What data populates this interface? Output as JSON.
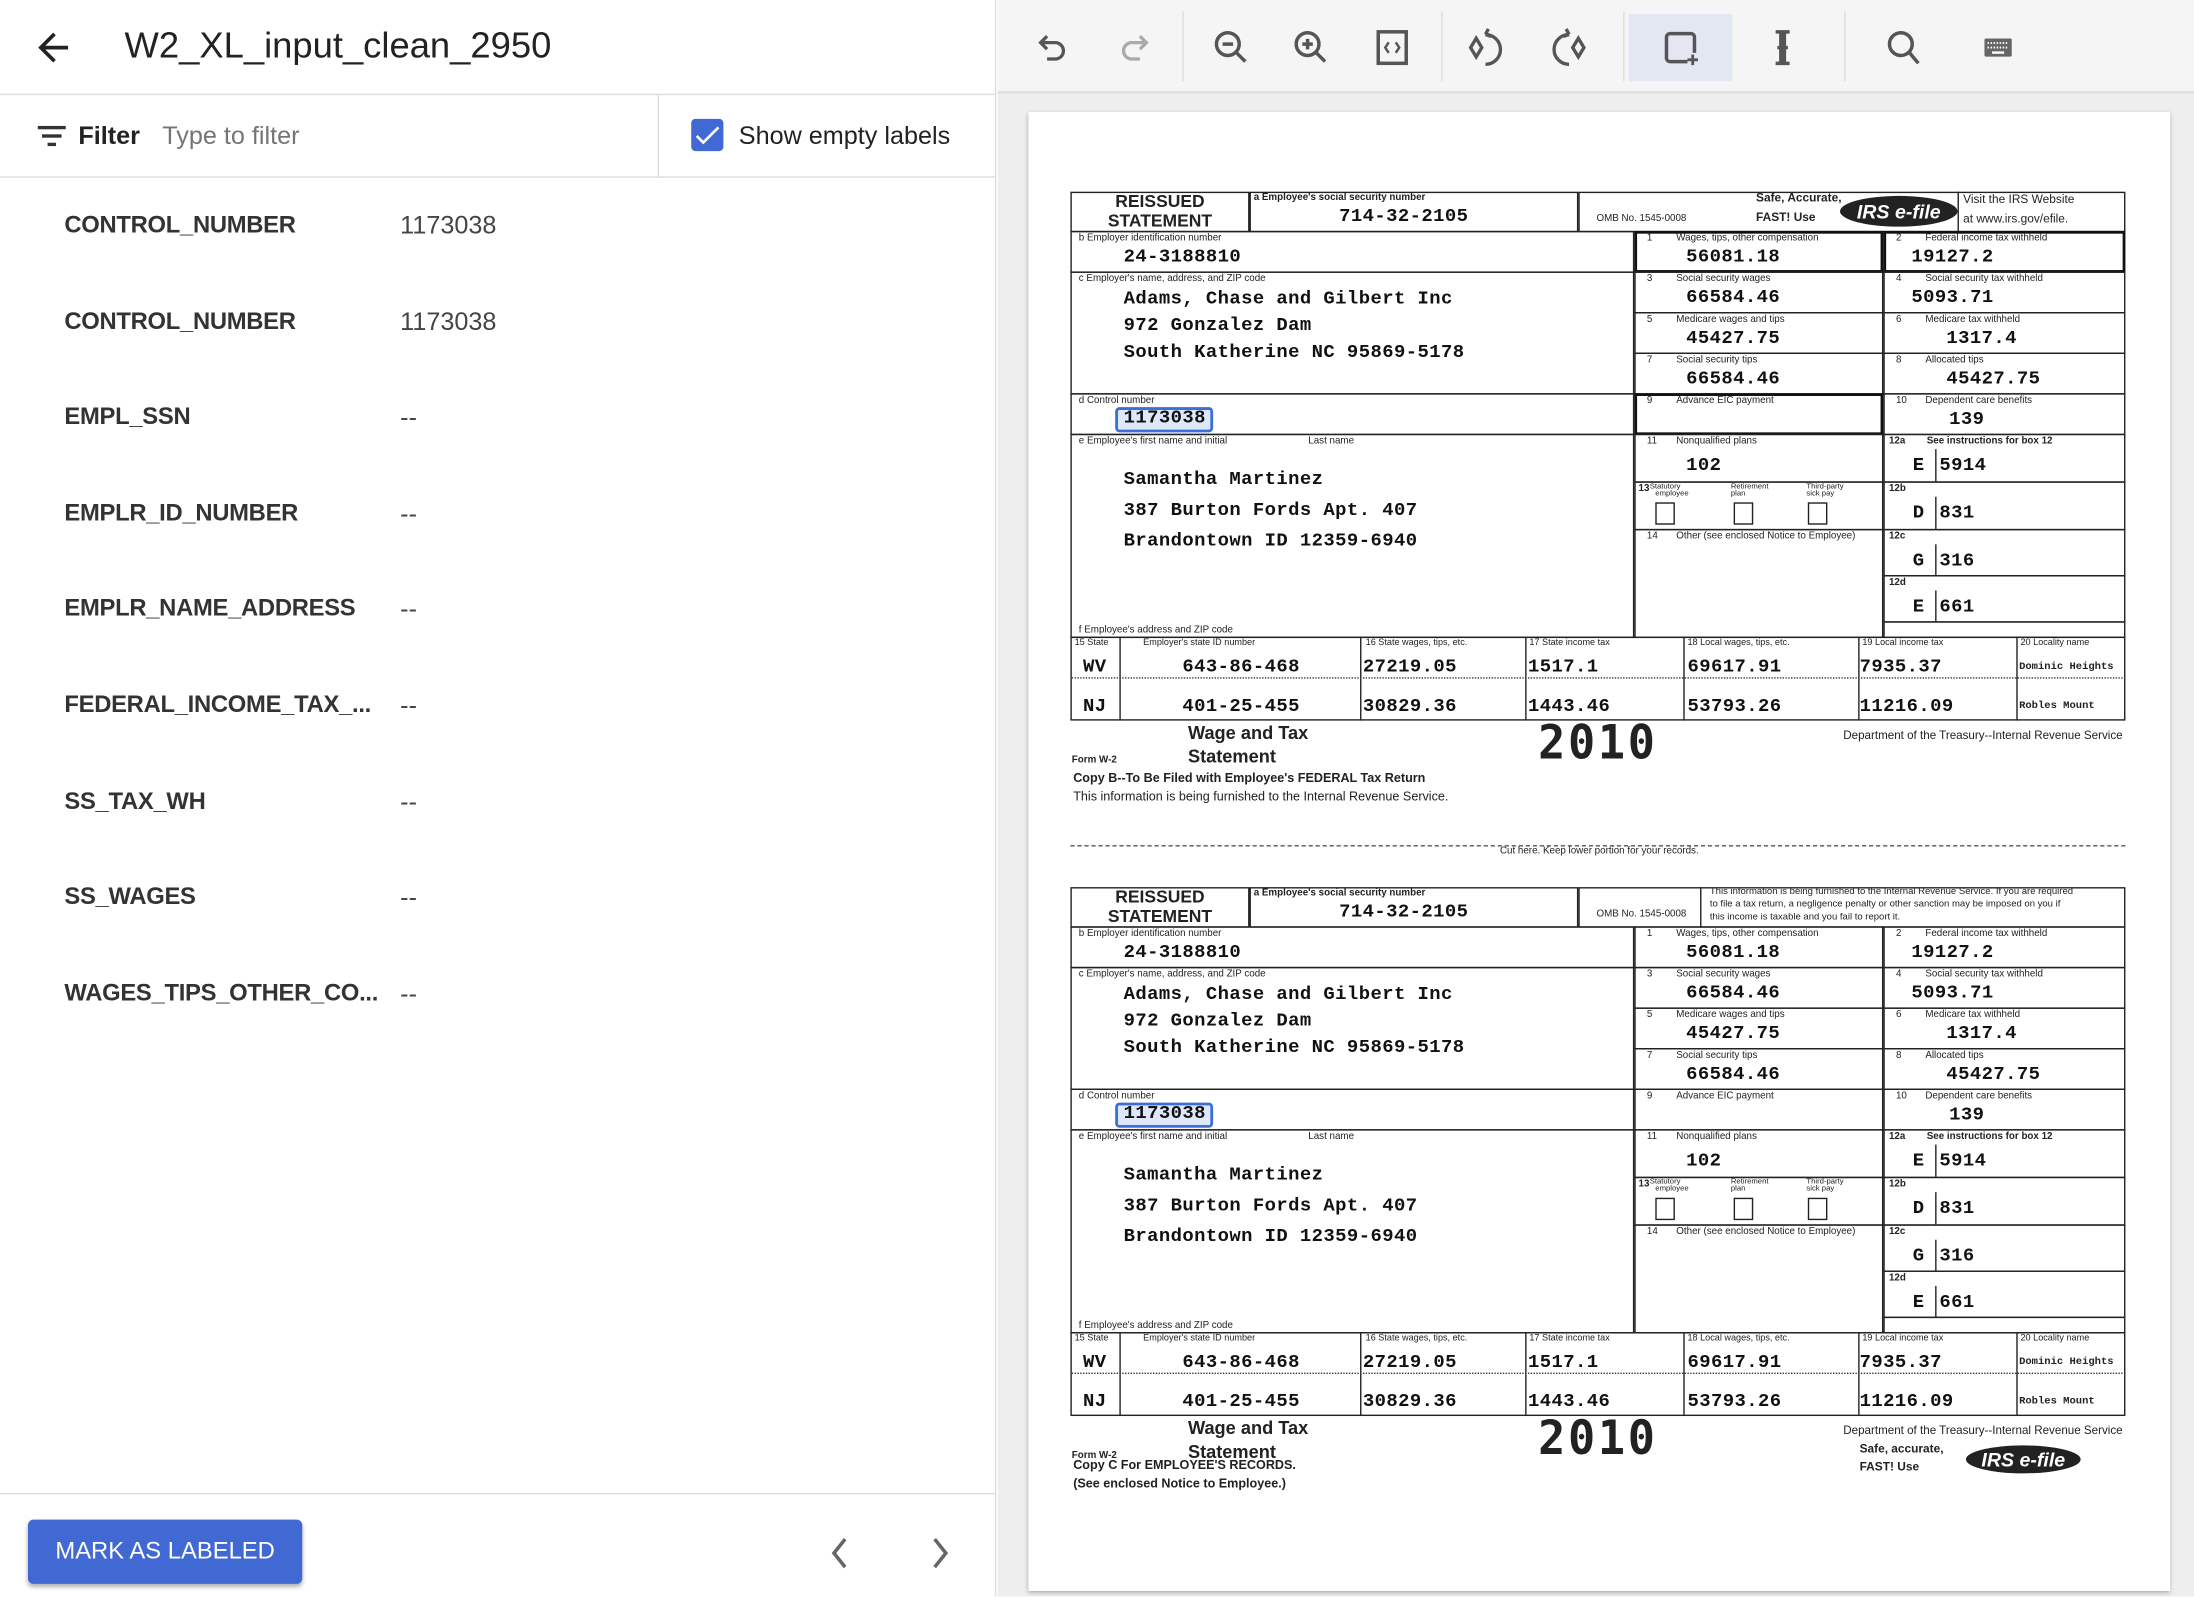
{
  "header": {
    "title": "W2_XL_input_clean_2950",
    "back_icon": "arrow-left-icon"
  },
  "filter": {
    "label": "Filter",
    "placeholder": "Type to filter",
    "show_empty_label": "Show empty labels",
    "show_empty_checked": true
  },
  "labels": [
    {
      "name": "CONTROL_NUMBER",
      "value": "1173038"
    },
    {
      "name": "CONTROL_NUMBER",
      "value": "1173038"
    },
    {
      "name": "EMPL_SSN",
      "value": "--"
    },
    {
      "name": "EMPLR_ID_NUMBER",
      "value": "--"
    },
    {
      "name": "EMPLR_NAME_ADDRESS",
      "value": "--"
    },
    {
      "name": "FEDERAL_INCOME_TAX_...",
      "value": "--"
    },
    {
      "name": "SS_TAX_WH",
      "value": "--"
    },
    {
      "name": "SS_WAGES",
      "value": "--"
    },
    {
      "name": "WAGES_TIPS_OTHER_CO...",
      "value": "--"
    }
  ],
  "footer": {
    "mark_button": "MARK AS LABELED",
    "accent": "#4169d4"
  },
  "toolbar": [
    "undo-icon",
    "redo-icon",
    "zoom-out-icon",
    "zoom-in-icon",
    "fit-page-icon",
    "rotate-left-icon",
    "rotate-right-icon",
    "add-bounding-box-icon",
    "text-select-icon",
    "search-icon",
    "keyboard-icon"
  ],
  "w2": {
    "reissued": "REISSUED",
    "statement": "STATEMENT",
    "a_label": "a  Employee's social security number",
    "ssn": "714-32-2105",
    "omb": "OMB No. 1545-0008",
    "b_label": "b  Employer identification number",
    "ein": "24-3188810",
    "c_label": "c  Employer's name, address, and ZIP code",
    "employer_lines": [
      "Adams, Chase and Gilbert Inc",
      "972 Gonzalez Dam",
      "South Katherine   NC   95869-5178"
    ],
    "d_label": "d  Control number",
    "control_number": "1173038",
    "e_label": "e  Employee's first name and initial",
    "last_name_label": "Last name",
    "employee_lines": [
      "Samantha   Martinez",
      "387 Burton Fords Apt. 407",
      "Brandontown   ID    12359-6940"
    ],
    "f_label": "f  Employee's address and ZIP code",
    "boxes": {
      "b1": {
        "num": "1",
        "label": "Wages, tips, other compensation",
        "value": "56081.18"
      },
      "b2": {
        "num": "2",
        "label": "Federal income tax withheld",
        "value": "19127.2"
      },
      "b3": {
        "num": "3",
        "label": "Social security wages",
        "value": "66584.46"
      },
      "b4": {
        "num": "4",
        "label": "Social security tax withheld",
        "value": "5093.71"
      },
      "b5": {
        "num": "5",
        "label": "Medicare wages and tips",
        "value": "45427.75"
      },
      "b6": {
        "num": "6",
        "label": "Medicare tax withheld",
        "value": "1317.4"
      },
      "b7": {
        "num": "7",
        "label": "Social security tips",
        "value": "66584.46"
      },
      "b8": {
        "num": "8",
        "label": "Allocated tips",
        "value": "45427.75"
      },
      "b9": {
        "num": "9",
        "label": "Advance EIC payment",
        "value": ""
      },
      "b10": {
        "num": "10",
        "label": "Dependent care benefits",
        "value": "139"
      },
      "b11": {
        "num": "11",
        "label": "Nonqualified plans",
        "value": "102"
      },
      "b14": {
        "num": "14",
        "label": "Other (see enclosed Notice to Employee)",
        "value": ""
      }
    },
    "box13": {
      "num": "13",
      "statutory": "Statutory",
      "employee": "employee",
      "retirement": "Retirement",
      "plan": "plan",
      "thirdparty": "Third-party",
      "sickpay": "sick pay"
    },
    "box12": [
      {
        "label": "12a",
        "extra": "See instructions for box 12",
        "code": "E",
        "value": "5914"
      },
      {
        "label": "12b",
        "extra": "",
        "code": "D",
        "value": "831"
      },
      {
        "label": "12c",
        "extra": "",
        "code": "G",
        "value": "316"
      },
      {
        "label": "12d",
        "extra": "",
        "code": "E",
        "value": "661"
      }
    ],
    "state_headers": [
      "15  State",
      "Employer's state ID number",
      "16  State wages, tips, etc.",
      "17  State income tax",
      "18  Local wages, tips, etc.",
      "19  Local income tax",
      "20  Locality name"
    ],
    "state_rows": [
      [
        "WV",
        "643-86-468",
        "27219.05",
        "1517.1",
        "69617.91",
        "7935.37",
        "Dominic Heights"
      ],
      [
        "NJ",
        "401-25-455",
        "30829.36",
        "1443.46",
        "53793.26",
        "11216.09",
        "Robles Mount"
      ]
    ],
    "wage_and_tax": "Wage and Tax",
    "statement_title": "Statement",
    "form_w2": "Form  W-2",
    "year": "2010",
    "dept": "Department of the Treasury--Internal Revenue Service",
    "efile_logo": "IRS e-file"
  },
  "copies": [
    {
      "safe": "Safe, Accurate,",
      "fast": "FAST!  Use",
      "visit1": "Visit the IRS Website",
      "visit2": "at www.irs.gov/efile.",
      "copy_line1": "Copy B--To Be Filed with Employee's FEDERAL Tax Return",
      "copy_line2": "This information is being furnished to the Internal Revenue Service."
    },
    {
      "notice": [
        "This information is being furnished to the Internal Revenue Service.  If you are required",
        "to file a tax return, a negligence penalty or other sanction may be imposed on you if",
        "this income is taxable and you fail to report it."
      ],
      "copy_line1": "Copy C For EMPLOYEE'S RECORDS.",
      "copy_line2": "(See enclosed Notice to Employee.)",
      "safe": "Safe, accurate,",
      "fast": "FAST!  Use"
    }
  ],
  "cut_line": "Cut here.  Keep lower portion for your records."
}
